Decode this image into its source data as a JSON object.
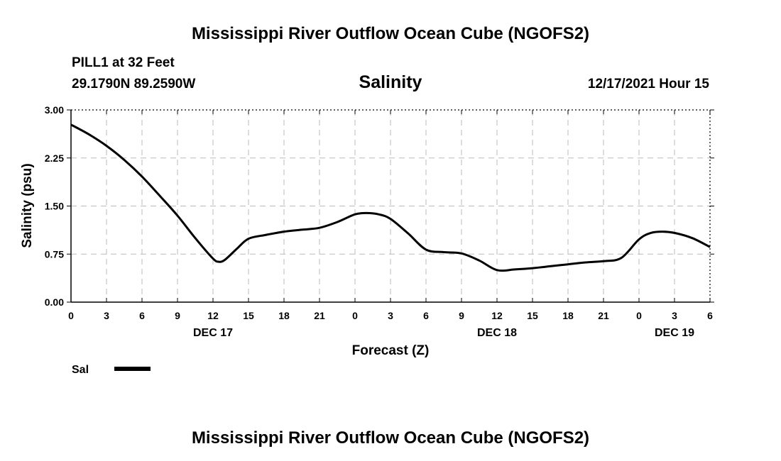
{
  "header": {
    "title": "Mississippi River Outflow Ocean Cube (NGOFS2)",
    "station": "PILL1 at 32 Feet",
    "coordinates": "29.1790N  89.2590W",
    "variable": "Salinity",
    "timestamp": "12/17/2021 Hour 15"
  },
  "footer": {
    "title": "Mississippi River Outflow Ocean Cube (NGOFS2)"
  },
  "legend": {
    "label": "Sal"
  },
  "colors": {
    "line": "#000000",
    "grid": "#bbbbbb",
    "background": "#ffffff"
  },
  "chart_data": {
    "type": "line",
    "title": "Salinity",
    "xlabel": "Forecast (Z)",
    "ylabel": "Salinity (psu)",
    "xlim": [
      0,
      54
    ],
    "ylim": [
      0.0,
      3.0
    ],
    "grid": true,
    "y_ticks": [
      0.0,
      0.75,
      1.5,
      2.25,
      3.0
    ],
    "y_tick_labels": [
      "0.00",
      "0.75",
      "1.50",
      "2.25",
      "3.00"
    ],
    "x_ticks": [
      0,
      3,
      6,
      9,
      12,
      15,
      18,
      21,
      24,
      27,
      30,
      33,
      36,
      39,
      42,
      45,
      48,
      51,
      54
    ],
    "x_tick_labels": [
      "0",
      "3",
      "6",
      "9",
      "12",
      "15",
      "18",
      "21",
      "0",
      "3",
      "6",
      "9",
      "12",
      "15",
      "18",
      "21",
      "0",
      "3",
      "6"
    ],
    "day_labels": [
      {
        "x": 12,
        "label": "DEC 17"
      },
      {
        "x": 36,
        "label": "DEC 18"
      },
      {
        "x": 51,
        "label": "DEC 19"
      }
    ],
    "series": [
      {
        "name": "Sal",
        "x": [
          0,
          1.5,
          3,
          4.5,
          6,
          7.5,
          9,
          10.5,
          12,
          12.5,
          13,
          14,
          15,
          16.5,
          18,
          19.5,
          21,
          22.5,
          24,
          25,
          26,
          27,
          28.5,
          30,
          31.5,
          33,
          34.5,
          36,
          37.5,
          39,
          40.5,
          42,
          43.5,
          45,
          46.5,
          48,
          49,
          50,
          51,
          52.5,
          54
        ],
        "values": [
          2.77,
          2.62,
          2.44,
          2.22,
          1.96,
          1.66,
          1.35,
          1.0,
          0.68,
          0.63,
          0.66,
          0.83,
          0.99,
          1.05,
          1.1,
          1.13,
          1.16,
          1.25,
          1.37,
          1.39,
          1.37,
          1.3,
          1.07,
          0.82,
          0.78,
          0.76,
          0.65,
          0.5,
          0.51,
          0.53,
          0.56,
          0.59,
          0.62,
          0.64,
          0.69,
          0.98,
          1.08,
          1.1,
          1.08,
          1.0,
          0.86
        ]
      }
    ]
  }
}
